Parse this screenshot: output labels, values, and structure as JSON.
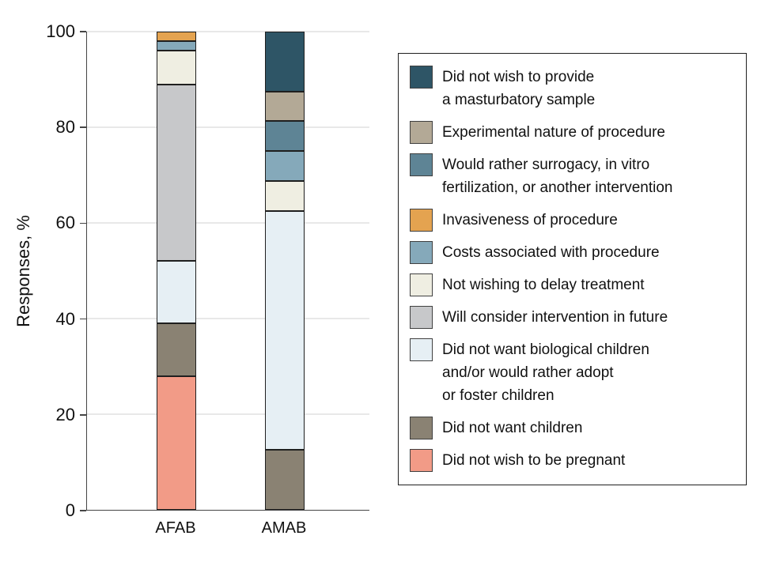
{
  "chart_data": {
    "type": "bar",
    "stacked": true,
    "title": "",
    "xlabel": "",
    "ylabel": "Responses, %",
    "ylim": [
      0,
      100
    ],
    "yticks": [
      0,
      20,
      40,
      60,
      80,
      100
    ],
    "grid": "horizontal",
    "legend_position": "right",
    "categories": [
      "AFAB",
      "AMAB"
    ],
    "series": [
      {
        "name": "Did not wish to be pregnant",
        "color": "#F29B87",
        "values": [
          28,
          0
        ]
      },
      {
        "name": "Did not want children",
        "color": "#8A8273",
        "values": [
          11,
          12.5
        ]
      },
      {
        "name": "Did not want biological children and/or would rather adopt or foster children",
        "color": "#E6EFF4",
        "values": [
          13,
          50
        ]
      },
      {
        "name": "Will consider intervention in future",
        "color": "#C7C8CA",
        "values": [
          37,
          0
        ]
      },
      {
        "name": "Not wishing to delay treatment",
        "color": "#EFEEE2",
        "values": [
          7,
          6.25
        ]
      },
      {
        "name": "Costs associated with procedure",
        "color": "#85A9BA",
        "values": [
          2,
          6.25
        ]
      },
      {
        "name": "Invasiveness of procedure",
        "color": "#E4A350",
        "values": [
          2,
          0
        ]
      },
      {
        "name": "Would rather surrogacy, in vitro fertilization, or another intervention",
        "color": "#5E8495",
        "values": [
          0,
          6.25
        ]
      },
      {
        "name": "Experimental nature of procedure",
        "color": "#B3A996",
        "values": [
          0,
          6.25
        ]
      },
      {
        "name": "Did not wish to provide a masturbatory sample",
        "color": "#2E5566",
        "values": [
          0,
          12.5
        ]
      }
    ]
  },
  "legend": {
    "items": [
      {
        "label": "Did not wish to provide\na masturbatory sample",
        "color": "#2E5566"
      },
      {
        "label": "Experimental nature of procedure",
        "color": "#B3A996"
      },
      {
        "label": "Would rather surrogacy, in vitro\nfertilization, or another intervention",
        "color": "#5E8495"
      },
      {
        "label": "Invasiveness of procedure",
        "color": "#E4A350"
      },
      {
        "label": "Costs associated with procedure",
        "color": "#85A9BA"
      },
      {
        "label": "Not wishing to delay treatment",
        "color": "#EFEEE2"
      },
      {
        "label": "Will consider intervention in future",
        "color": "#C7C8CA"
      },
      {
        "label": "Did not want biological children\nand/or would rather adopt\nor foster children",
        "color": "#E6EFF4"
      },
      {
        "label": "Did not want children",
        "color": "#8A8273"
      },
      {
        "label": "Did not wish to be pregnant",
        "color": "#F29B87"
      }
    ]
  }
}
